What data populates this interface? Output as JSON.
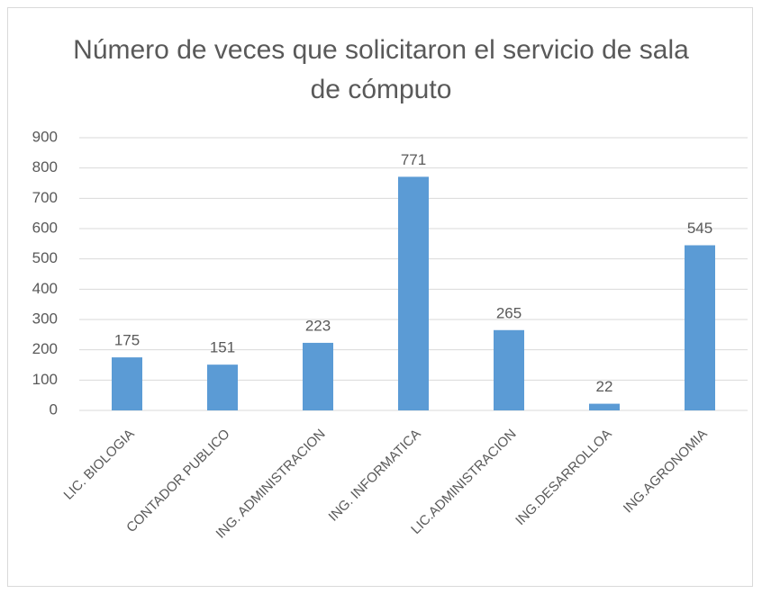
{
  "chart_data": {
    "type": "bar",
    "title": "Número de veces que solicitaron el servicio de sala de cómputo",
    "categories": [
      "LIC. BIOLOGIA",
      "CONTADOR PUBLICO",
      "ING. ADMINISTRACION",
      "ING. INFORMATICA",
      "LIC.ADMINISTRACION",
      "ING.DESARROLLOA",
      "ING.AGRONOMIA"
    ],
    "values": [
      175,
      151,
      223,
      771,
      265,
      22,
      545
    ],
    "color": "#5b9bd5",
    "ylim": [
      0,
      900
    ],
    "yticks": [
      0,
      100,
      200,
      300,
      400,
      500,
      600,
      700,
      800,
      900
    ],
    "grid": true
  }
}
